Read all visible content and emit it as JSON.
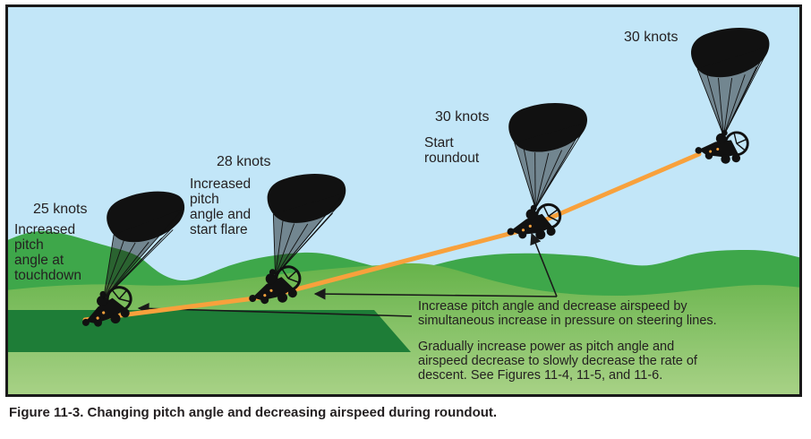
{
  "figure": {
    "caption": "Figure 11-3. Changing pitch angle and decreasing airspeed during roundout.",
    "colors": {
      "sky": "#c2e6f8",
      "hills": "#3ea74a",
      "field_top": "#66b34a",
      "field_bottom": "#a9d287",
      "runway": "#1e7d37",
      "path_orange": "#f8a13c",
      "text": "#231f20"
    }
  },
  "stages": [
    {
      "id": "cruise",
      "speed_label": "30 knots",
      "note": ""
    },
    {
      "id": "start-roundout",
      "speed_label": "30 knots",
      "note": "Start\nroundout"
    },
    {
      "id": "start-flare",
      "speed_label": "28 knots",
      "note": "Increased\npitch\nangle and\nstart flare"
    },
    {
      "id": "touchdown",
      "speed_label": "25 knots",
      "note": "Increased\npitch\nangle at\ntouchdown"
    }
  ],
  "annotations": {
    "steering": "Increase pitch angle and decrease airspeed by\nsimultaneous increase in pressure on steering lines.",
    "power": "Gradually increase power as pitch angle and\nairspeed decrease to slowly decrease the rate of\ndescent. See Figures 11-4, 11-5, and 11-6."
  }
}
